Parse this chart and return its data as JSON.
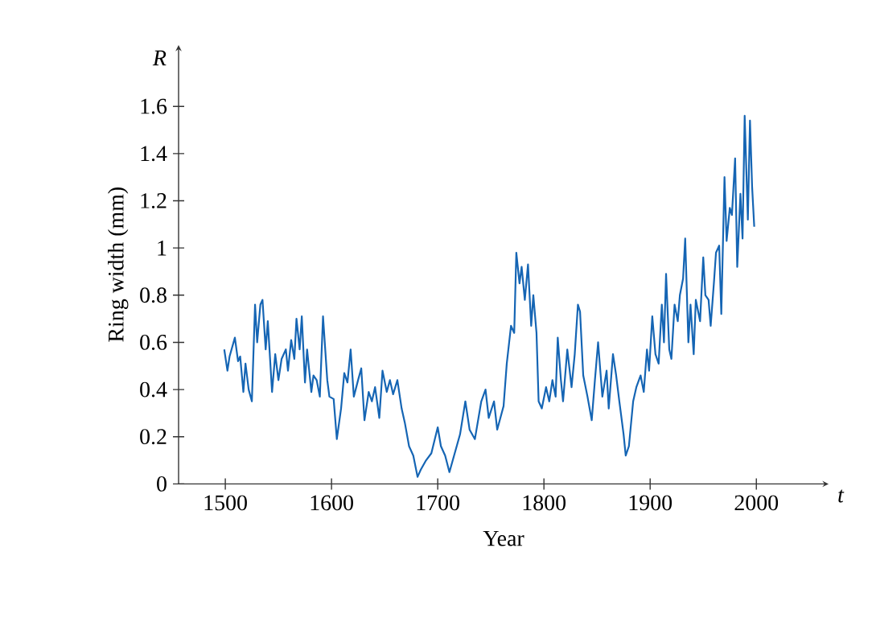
{
  "chart_data": {
    "type": "line",
    "xlabel": "Year",
    "ylabel": "Ring width (mm)",
    "annotations": [
      "R",
      "t"
    ],
    "xlim": [
      1456,
      2068
    ],
    "ylim": [
      0,
      1.86
    ],
    "xticks": [
      1500,
      1600,
      1700,
      1800,
      1900,
      2000
    ],
    "yticks": [
      0,
      0.2,
      0.4,
      0.6,
      0.8,
      1,
      1.2,
      1.4,
      1.6
    ],
    "marker": "none",
    "line_style": "solid",
    "series": [
      {
        "color": "#1565b4",
        "x": [
          1499,
          1502,
          1504,
          1509,
          1512,
          1514,
          1517,
          1519,
          1522,
          1525,
          1528,
          1530,
          1533,
          1535,
          1538,
          1540,
          1544,
          1547,
          1550,
          1553,
          1557,
          1559,
          1562,
          1565,
          1567,
          1570,
          1572,
          1575,
          1577,
          1581,
          1583,
          1586,
          1589,
          1592,
          1596,
          1598,
          1602,
          1605,
          1609,
          1612,
          1615,
          1618,
          1621,
          1625,
          1628,
          1631,
          1635,
          1638,
          1641,
          1645,
          1648,
          1652,
          1655,
          1658,
          1662,
          1666,
          1669,
          1673,
          1677,
          1681,
          1684,
          1689,
          1694,
          1700,
          1703,
          1707,
          1711,
          1716,
          1721,
          1726,
          1730,
          1735,
          1741,
          1745,
          1748,
          1753,
          1756,
          1762,
          1765,
          1769,
          1772,
          1774,
          1777,
          1779,
          1782,
          1785,
          1788,
          1790,
          1793,
          1795,
          1798,
          1802,
          1805,
          1808,
          1811,
          1813,
          1816,
          1818,
          1822,
          1826,
          1829,
          1832,
          1834,
          1837,
          1841,
          1845,
          1848,
          1851,
          1855,
          1859,
          1861,
          1865,
          1868,
          1871,
          1875,
          1877,
          1880,
          1884,
          1887,
          1891,
          1894,
          1897,
          1899,
          1902,
          1905,
          1908,
          1911,
          1913,
          1915,
          1918,
          1920,
          1923,
          1926,
          1928,
          1931,
          1933,
          1936,
          1938,
          1941,
          1943,
          1947,
          1950,
          1952,
          1955,
          1957,
          1960,
          1962,
          1965,
          1967,
          1970,
          1972,
          1975,
          1977,
          1980,
          1982,
          1985,
          1987,
          1989,
          1992,
          1994,
          1996,
          1998
        ],
        "values": [
          0.57,
          0.48,
          0.54,
          0.62,
          0.52,
          0.54,
          0.39,
          0.51,
          0.4,
          0.35,
          0.76,
          0.6,
          0.76,
          0.78,
          0.57,
          0.69,
          0.39,
          0.55,
          0.44,
          0.53,
          0.57,
          0.48,
          0.61,
          0.53,
          0.7,
          0.57,
          0.71,
          0.43,
          0.57,
          0.39,
          0.46,
          0.44,
          0.37,
          0.71,
          0.44,
          0.37,
          0.36,
          0.19,
          0.32,
          0.47,
          0.43,
          0.57,
          0.37,
          0.44,
          0.49,
          0.27,
          0.39,
          0.35,
          0.41,
          0.28,
          0.48,
          0.39,
          0.44,
          0.38,
          0.44,
          0.32,
          0.26,
          0.16,
          0.12,
          0.03,
          0.06,
          0.1,
          0.13,
          0.24,
          0.16,
          0.12,
          0.05,
          0.13,
          0.21,
          0.35,
          0.23,
          0.19,
          0.35,
          0.4,
          0.28,
          0.35,
          0.23,
          0.33,
          0.51,
          0.67,
          0.64,
          0.98,
          0.85,
          0.92,
          0.78,
          0.93,
          0.67,
          0.8,
          0.64,
          0.35,
          0.32,
          0.41,
          0.35,
          0.44,
          0.37,
          0.62,
          0.44,
          0.35,
          0.57,
          0.41,
          0.55,
          0.76,
          0.73,
          0.46,
          0.37,
          0.27,
          0.44,
          0.6,
          0.37,
          0.48,
          0.32,
          0.55,
          0.46,
          0.35,
          0.21,
          0.12,
          0.16,
          0.35,
          0.41,
          0.46,
          0.39,
          0.57,
          0.48,
          0.71,
          0.55,
          0.51,
          0.76,
          0.6,
          0.89,
          0.57,
          0.53,
          0.76,
          0.69,
          0.8,
          0.87,
          1.04,
          0.6,
          0.76,
          0.55,
          0.78,
          0.69,
          0.96,
          0.8,
          0.78,
          0.67,
          0.85,
          0.98,
          1.01,
          0.72,
          1.3,
          1.03,
          1.17,
          1.14,
          1.38,
          0.92,
          1.23,
          1.04,
          1.56,
          1.12,
          1.54,
          1.26,
          1.09
        ]
      }
    ]
  }
}
